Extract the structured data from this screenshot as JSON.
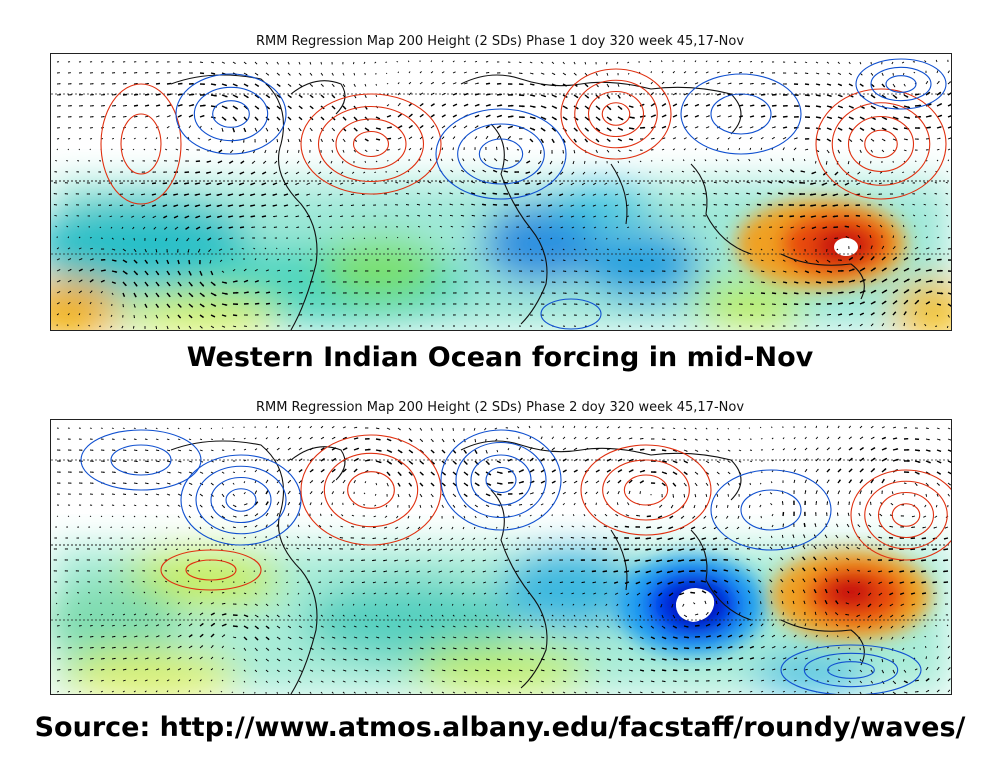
{
  "maps": [
    {
      "title": "RMM Regression Map 200 Height (2 SDs) Phase 1 doy 320 week 45,17-Nov",
      "colors": {
        "warm": "#e03010",
        "cool": "#1050d0",
        "low": "#0000aa",
        "high": "#ff0000"
      }
    },
    {
      "title": "RMM Regression Map 200 Height (2 SDs) Phase 2 doy 320 week 45,17-Nov",
      "colors": {
        "warm": "#e03010",
        "cool": "#1050d0",
        "low": "#0000aa",
        "high": "#ff0000"
      }
    }
  ],
  "caption": "Western Indian Ocean forcing in mid-Nov",
  "source": "Source: http://www.atmos.albany.edu/facstaff/roundy/waves/"
}
